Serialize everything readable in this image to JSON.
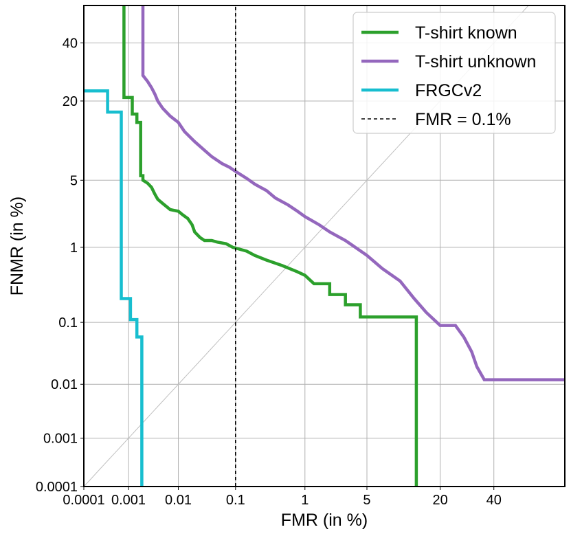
{
  "chart_data": {
    "type": "line",
    "xlabel": "FMR (in %)",
    "ylabel": "FNMR (in %)",
    "x_scale": "probit",
    "y_scale": "probit",
    "xlim": [
      0.0001,
      70
    ],
    "ylim": [
      0.0001,
      55
    ],
    "grid": true,
    "legend_position": "top-right",
    "x_ticks": [
      {
        "value": 0.0001,
        "label": "0.0001"
      },
      {
        "value": 0.001,
        "label": "0.001"
      },
      {
        "value": 0.01,
        "label": "0.01"
      },
      {
        "value": 0.1,
        "label": "0.1"
      },
      {
        "value": 1,
        "label": "1"
      },
      {
        "value": 5,
        "label": "5"
      },
      {
        "value": 20,
        "label": "20"
      },
      {
        "value": 40,
        "label": "40"
      }
    ],
    "y_ticks": [
      {
        "value": 0.0001,
        "label": "0.0001"
      },
      {
        "value": 0.001,
        "label": "0.001"
      },
      {
        "value": 0.01,
        "label": "0.01"
      },
      {
        "value": 0.1,
        "label": "0.1"
      },
      {
        "value": 1,
        "label": "1"
      },
      {
        "value": 5,
        "label": "5"
      },
      {
        "value": 20,
        "label": "20"
      },
      {
        "value": 40,
        "label": "40"
      }
    ],
    "series": [
      {
        "name": "T-shirt known",
        "color": "#2ca02c",
        "style": "solid",
        "points": [
          [
            0.0008,
            55
          ],
          [
            0.0008,
            21
          ],
          [
            0.0012,
            21
          ],
          [
            0.0012,
            16.5
          ],
          [
            0.0015,
            16.5
          ],
          [
            0.0015,
            14.5
          ],
          [
            0.0018,
            14.5
          ],
          [
            0.0018,
            5.5
          ],
          [
            0.002,
            5.5
          ],
          [
            0.002,
            5.0
          ],
          [
            0.0025,
            4.7
          ],
          [
            0.003,
            4.3
          ],
          [
            0.0035,
            3.7
          ],
          [
            0.004,
            3.3
          ],
          [
            0.005,
            3.0
          ],
          [
            0.007,
            2.6
          ],
          [
            0.01,
            2.5
          ],
          [
            0.012,
            2.3
          ],
          [
            0.015,
            2.1
          ],
          [
            0.018,
            1.8
          ],
          [
            0.02,
            1.5
          ],
          [
            0.025,
            1.3
          ],
          [
            0.03,
            1.2
          ],
          [
            0.04,
            1.2
          ],
          [
            0.05,
            1.15
          ],
          [
            0.07,
            1.1
          ],
          [
            0.09,
            1.0
          ],
          [
            0.1,
            0.98
          ],
          [
            0.15,
            0.9
          ],
          [
            0.2,
            0.8
          ],
          [
            0.3,
            0.7
          ],
          [
            0.5,
            0.6
          ],
          [
            0.8,
            0.5
          ],
          [
            1.0,
            0.45
          ],
          [
            1.3,
            0.35
          ],
          [
            2.0,
            0.35
          ],
          [
            2.0,
            0.25
          ],
          [
            3.0,
            0.25
          ],
          [
            3.0,
            0.18
          ],
          [
            4.3,
            0.18
          ],
          [
            4.3,
            0.12
          ],
          [
            13.5,
            0.12
          ],
          [
            13.5,
            0.0001
          ]
        ]
      },
      {
        "name": "T-shirt unknown",
        "color": "#9467bd",
        "style": "solid",
        "points": [
          [
            0.002,
            55
          ],
          [
            0.002,
            28
          ],
          [
            0.0025,
            26
          ],
          [
            0.003,
            24
          ],
          [
            0.0035,
            22
          ],
          [
            0.004,
            20
          ],
          [
            0.005,
            18
          ],
          [
            0.007,
            16
          ],
          [
            0.01,
            14.5
          ],
          [
            0.013,
            12.5
          ],
          [
            0.02,
            10.5
          ],
          [
            0.03,
            9.0
          ],
          [
            0.04,
            8.0
          ],
          [
            0.06,
            7.0
          ],
          [
            0.08,
            6.5
          ],
          [
            0.1,
            6.0
          ],
          [
            0.15,
            5.2
          ],
          [
            0.2,
            4.6
          ],
          [
            0.3,
            4.0
          ],
          [
            0.4,
            3.4
          ],
          [
            0.6,
            2.9
          ],
          [
            0.8,
            2.5
          ],
          [
            1.0,
            2.2
          ],
          [
            1.5,
            1.8
          ],
          [
            2.0,
            1.5
          ],
          [
            3.0,
            1.2
          ],
          [
            5.0,
            0.8
          ],
          [
            7.0,
            0.55
          ],
          [
            10.0,
            0.38
          ],
          [
            13.0,
            0.22
          ],
          [
            16.0,
            0.14
          ],
          [
            20.0,
            0.09
          ],
          [
            25.0,
            0.09
          ],
          [
            28.0,
            0.06
          ],
          [
            31.0,
            0.035
          ],
          [
            33.0,
            0.02
          ],
          [
            36.0,
            0.012
          ],
          [
            70.0,
            0.012
          ]
        ]
      },
      {
        "name": "FRGCv2",
        "color": "#17becf",
        "style": "solid",
        "points": [
          [
            0.0001,
            23
          ],
          [
            0.00035,
            23
          ],
          [
            0.00035,
            17
          ],
          [
            0.0007,
            17
          ],
          [
            0.0007,
            0.22
          ],
          [
            0.0011,
            0.22
          ],
          [
            0.0011,
            0.11
          ],
          [
            0.0015,
            0.11
          ],
          [
            0.0015,
            0.06
          ],
          [
            0.0019,
            0.06
          ],
          [
            0.0019,
            0.0001
          ]
        ]
      },
      {
        "name": "FMR = 0.1%",
        "color": "#000000",
        "style": "dashed",
        "points": [
          [
            0.1,
            0.0001
          ],
          [
            0.1,
            55
          ]
        ]
      }
    ]
  }
}
